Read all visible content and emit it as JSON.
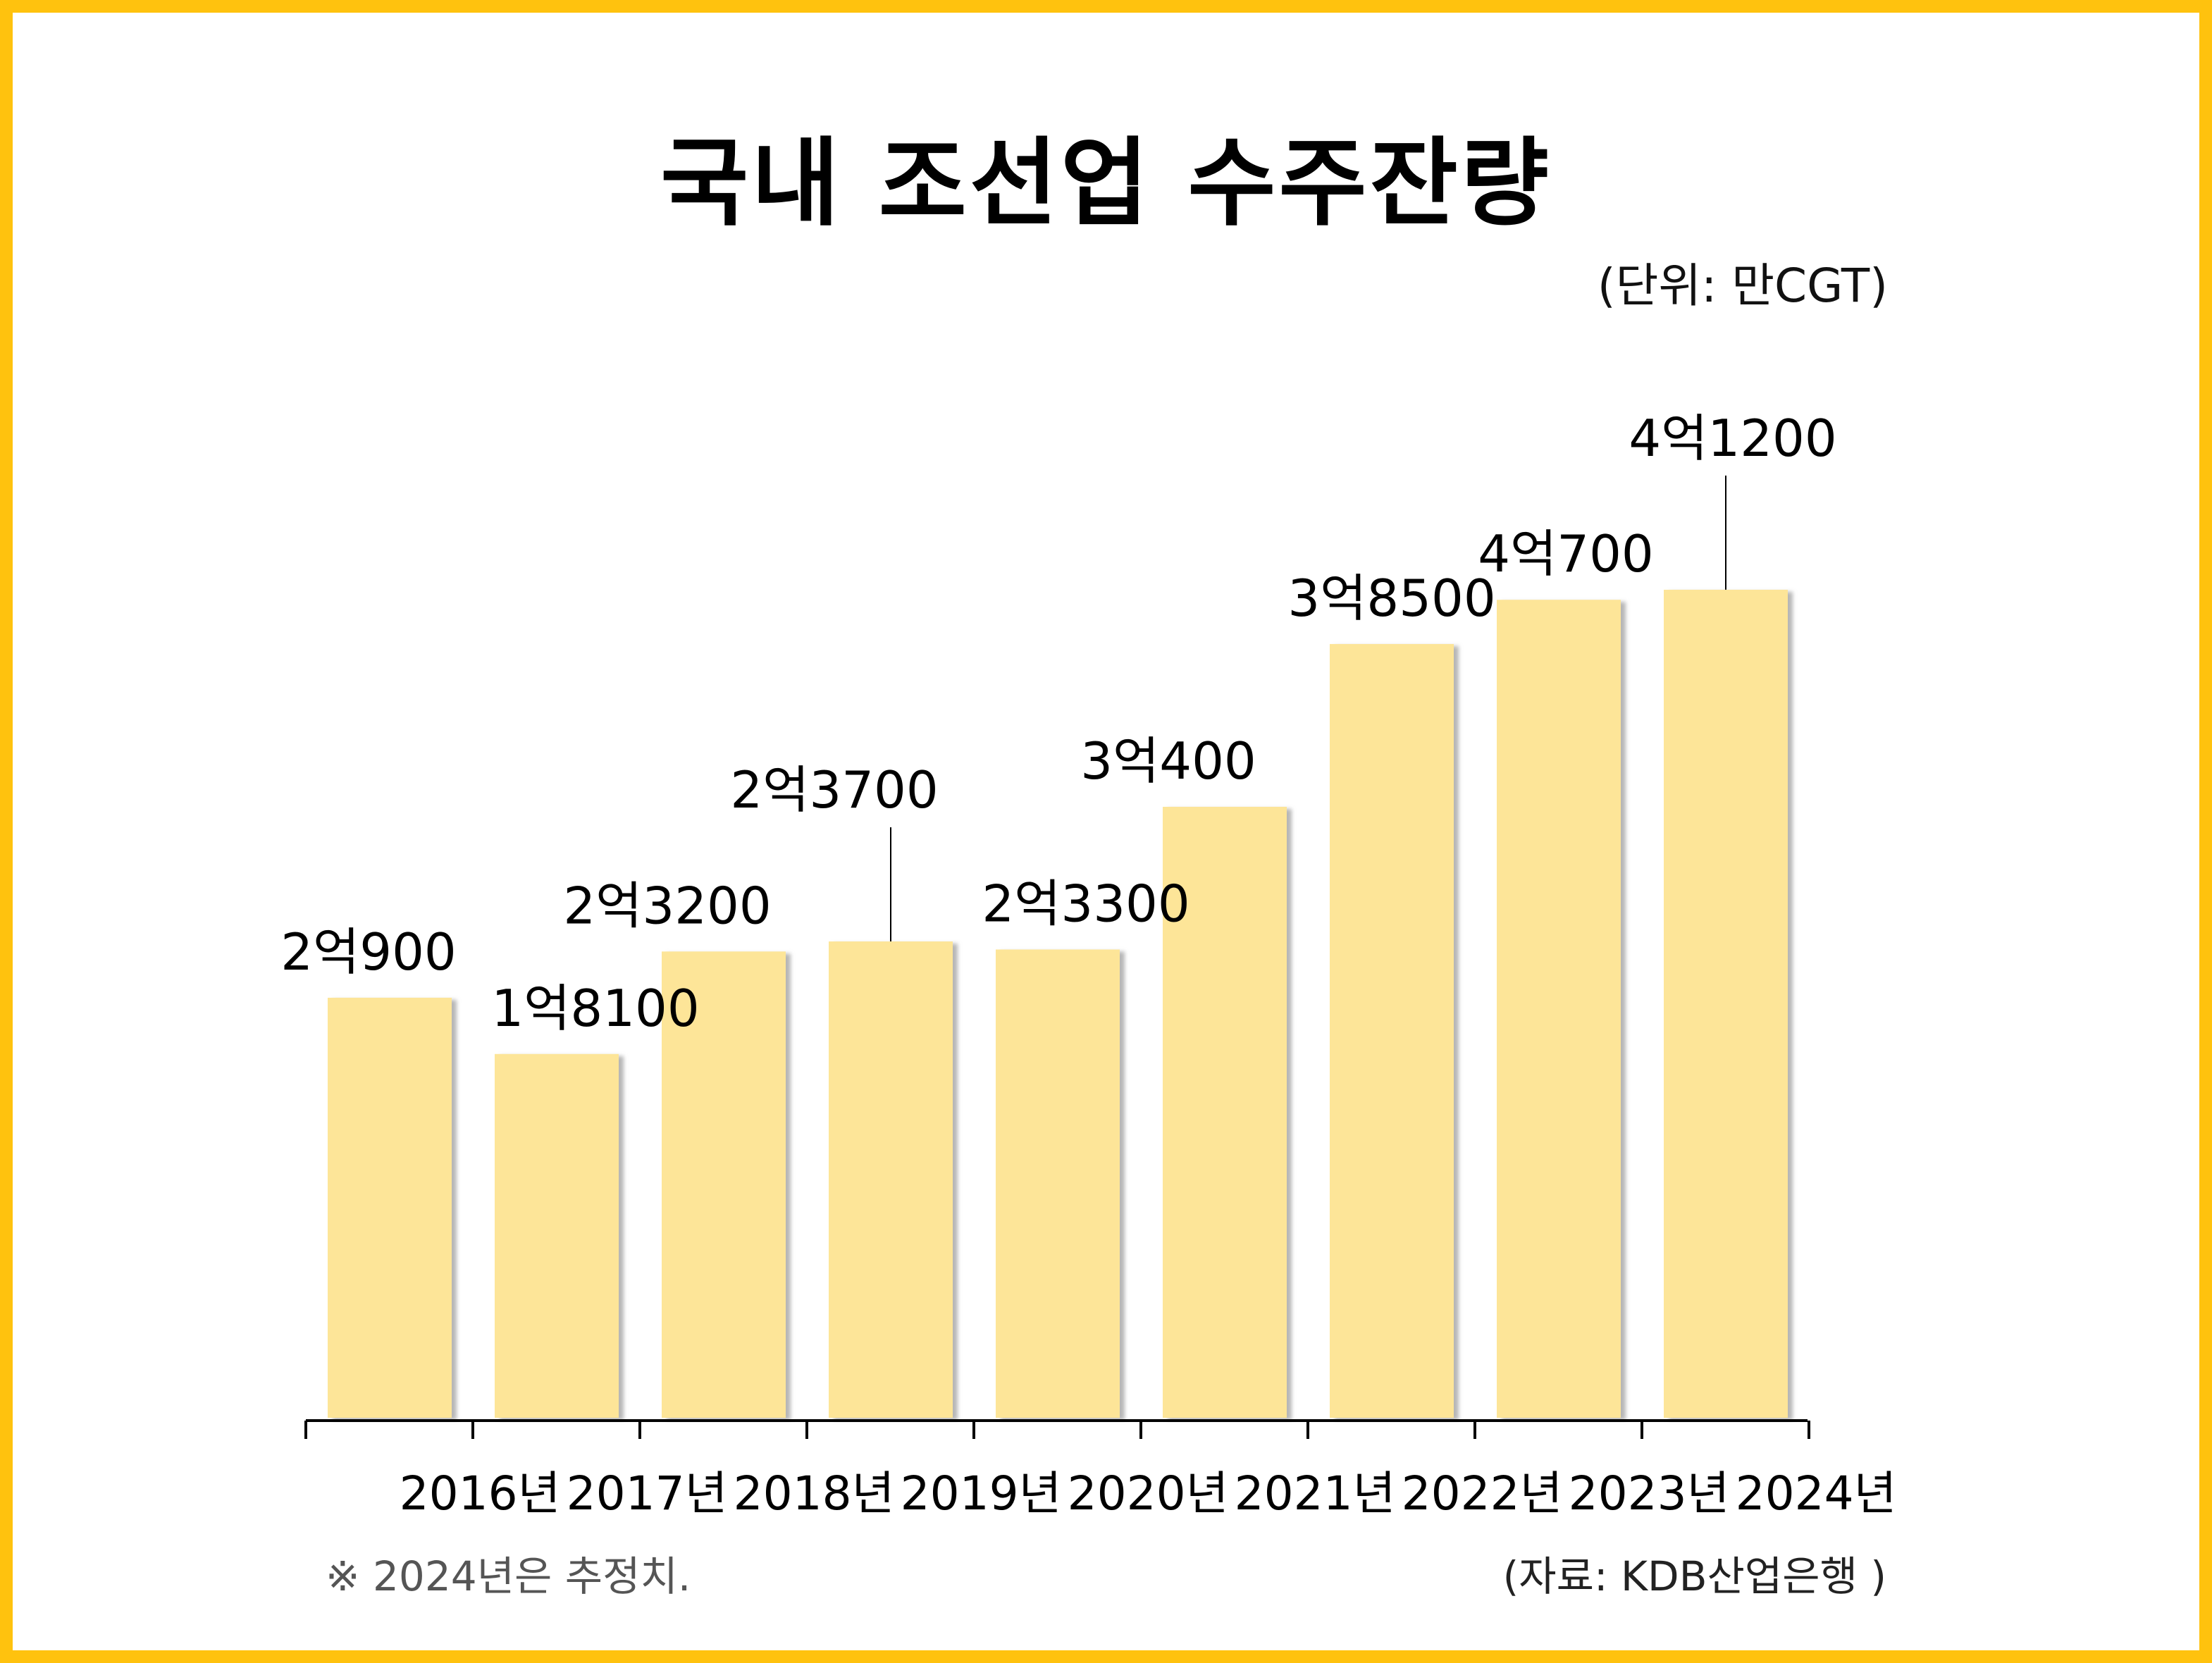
{
  "title": "국내 조선업 수주잔량",
  "unit_label": "(단위: 만CGT)",
  "footnote": "※ 2024년은 추정치.",
  "source": "(자료: KDB산업은행 )",
  "colors": {
    "frame": "#FFC20E",
    "bar": "#FDE598",
    "shadow": "#BDBDBD",
    "axis": "#000000"
  },
  "chart_data": {
    "type": "bar",
    "title": "국내 조선업 수주잔량",
    "unit": "만CGT",
    "categories": [
      "2016년",
      "2017년",
      "2018년",
      "2019년",
      "2020년",
      "2021년",
      "2022년",
      "2023년",
      "2024년"
    ],
    "values": [
      20900,
      18100,
      23200,
      23700,
      23300,
      30400,
      38500,
      40700,
      41200
    ],
    "data_labels": [
      "2억900",
      "1억8100",
      "2억3200",
      "2억3700",
      "2억3300",
      "3억400",
      "3억8500",
      "4억700",
      "4억1200"
    ],
    "ylim": [
      0,
      45300
    ],
    "grid": false,
    "xlabel": "",
    "ylabel": ""
  }
}
